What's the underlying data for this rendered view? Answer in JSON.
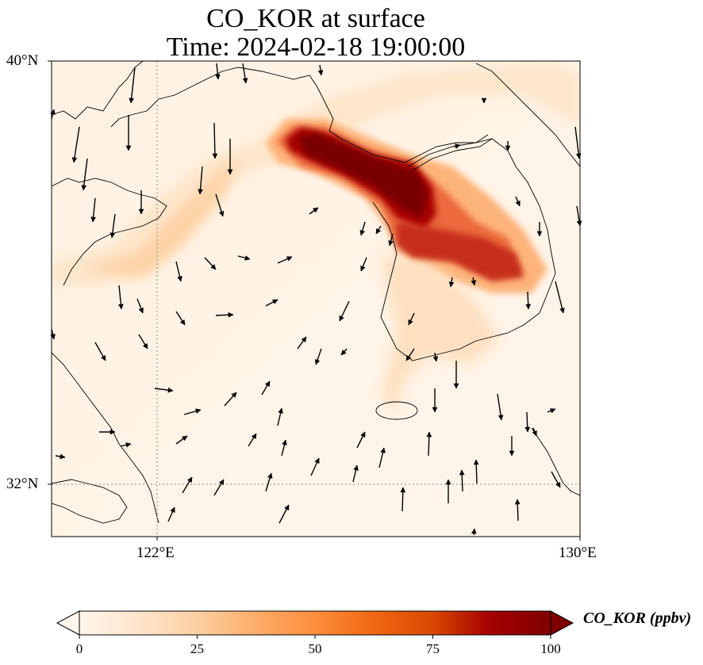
{
  "title": {
    "line1": "CO_KOR at surface",
    "line2": "Time: 2024-02-18 19:00:00"
  },
  "map": {
    "lat_range": [
      31,
      40
    ],
    "lon_range": [
      120,
      130
    ],
    "lat_ticks": [
      {
        "value": 40,
        "label": "40°N"
      },
      {
        "value": 32,
        "label": "32°N"
      }
    ],
    "lon_ticks": [
      {
        "value": 122,
        "label": "122°E"
      },
      {
        "value": 130,
        "label": "130°E"
      }
    ],
    "gridlines": {
      "style": "dotted",
      "color": "#888888"
    },
    "wind_vectors": "black arrows",
    "plume_description_colors": {
      "low": "#fff5eb",
      "high": "#7f0000"
    }
  },
  "colorbar": {
    "label": "CO_KOR (ppbv)",
    "min": 0,
    "max": 100,
    "ticks": [
      0,
      25,
      50,
      75,
      100
    ],
    "extend": "both",
    "colormap": [
      "#fff5eb",
      "#fee6ce",
      "#fdd0a2",
      "#fdae6b",
      "#fd8d3c",
      "#f16913",
      "#d94801",
      "#a50000",
      "#7f0000"
    ]
  }
}
